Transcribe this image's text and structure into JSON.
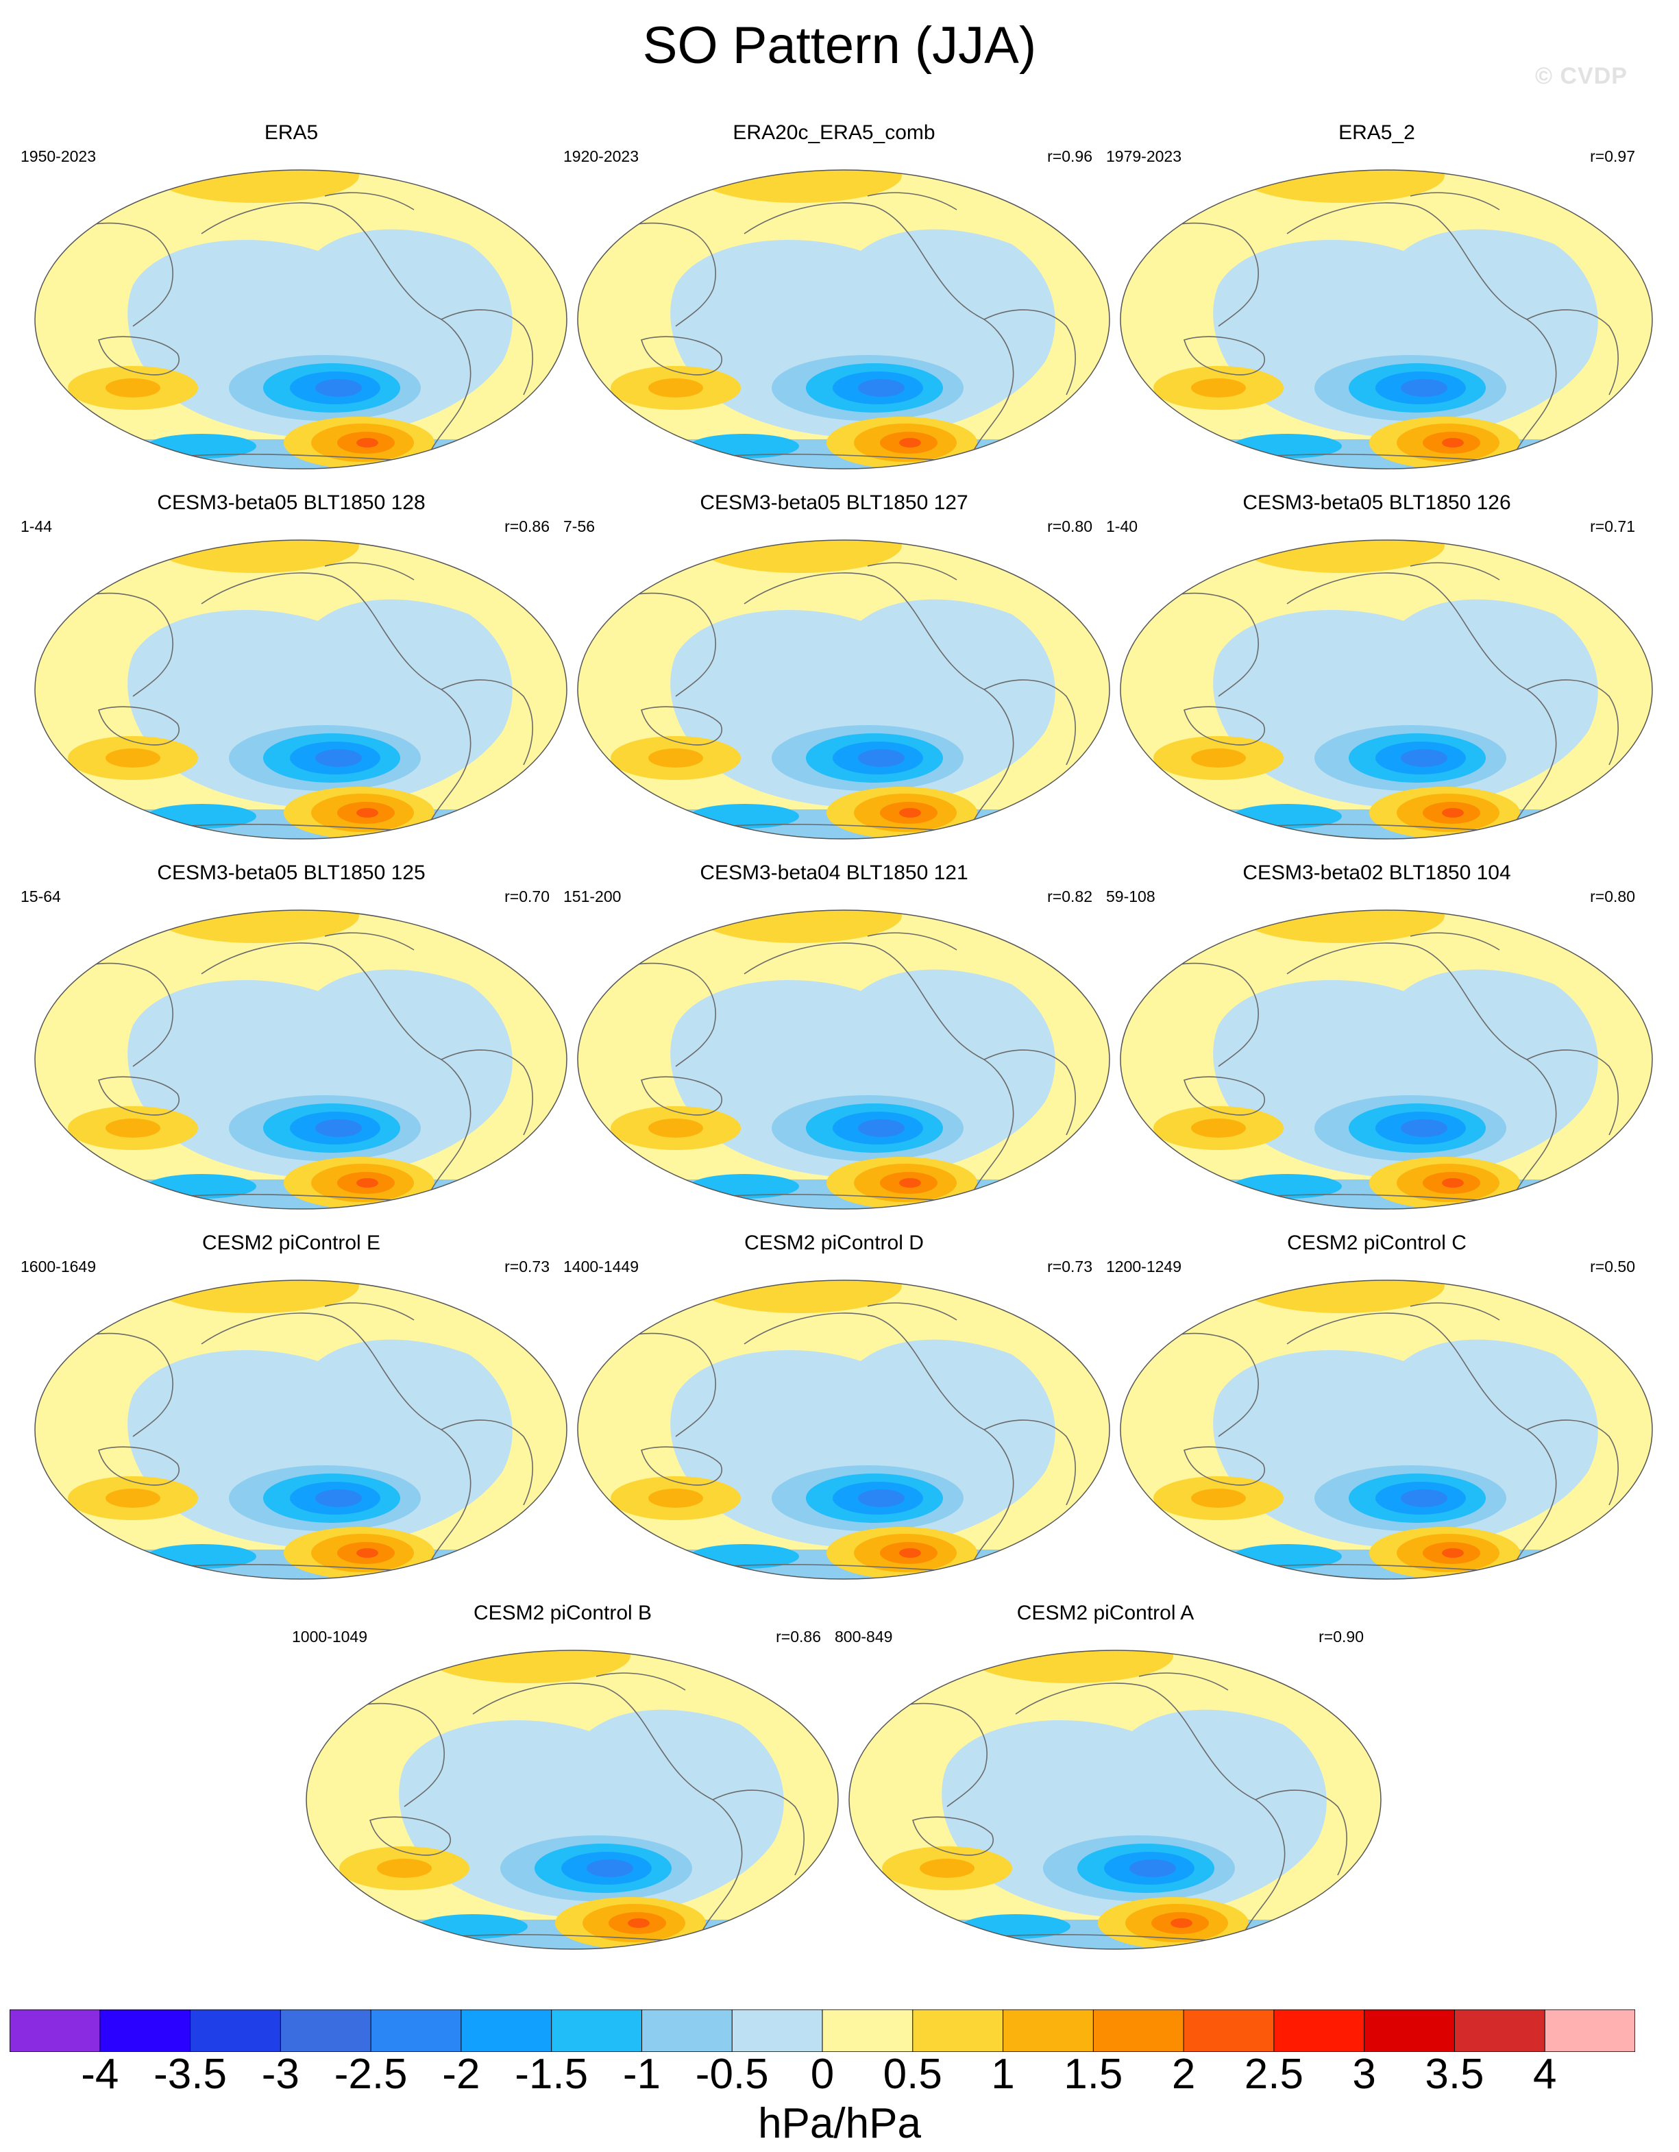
{
  "title": "SO Pattern (JJA)",
  "watermark": "© CVDP",
  "panels": [
    {
      "title": "ERA5",
      "period": "1950-2023",
      "r": ""
    },
    {
      "title": "ERA20c_ERA5_comb",
      "period": "1920-2023",
      "r": "r=0.96"
    },
    {
      "title": "ERA5_2",
      "period": "1979-2023",
      "r": "r=0.97"
    },
    {
      "title": "CESM3-beta05 BLT1850 128",
      "period": "1-44",
      "r": "r=0.86"
    },
    {
      "title": "CESM3-beta05 BLT1850 127",
      "period": "7-56",
      "r": "r=0.80"
    },
    {
      "title": "CESM3-beta05 BLT1850 126",
      "period": "1-40",
      "r": "r=0.71"
    },
    {
      "title": "CESM3-beta05 BLT1850 125",
      "period": "15-64",
      "r": "r=0.70"
    },
    {
      "title": "CESM3-beta04 BLT1850 121",
      "period": "151-200",
      "r": "r=0.82"
    },
    {
      "title": "CESM3-beta02 BLT1850 104",
      "period": "59-108",
      "r": "r=0.80"
    },
    {
      "title": "CESM2 piControl E",
      "period": "1600-1649",
      "r": "r=0.73"
    },
    {
      "title": "CESM2 piControl D",
      "period": "1400-1449",
      "r": "r=0.73"
    },
    {
      "title": "CESM2 piControl C",
      "period": "1200-1249",
      "r": "r=0.50"
    },
    {
      "title": "CESM2 piControl B",
      "period": "1000-1049",
      "r": "r=0.86"
    },
    {
      "title": "CESM2 piControl A",
      "period": "800-849",
      "r": "r=0.90"
    }
  ],
  "colorbar": {
    "units": "hPa/hPa",
    "ticks": [
      "-4",
      "-3.5",
      "-3",
      "-2.5",
      "-2",
      "-1.5",
      "-1",
      "-0.5",
      "0",
      "0.5",
      "1",
      "1.5",
      "2",
      "2.5",
      "3",
      "3.5",
      "4"
    ],
    "colors": [
      "#8a2be2",
      "#2a00ff",
      "#1f3fe8",
      "#3a6ee0",
      "#2a86f5",
      "#12a0ff",
      "#20bdf8",
      "#8ccdf0",
      "#bee0f3",
      "#fff6a0",
      "#fcd634",
      "#fcb20c",
      "#fc8c00",
      "#fc5a0a",
      "#ff1a00",
      "#dc0000",
      "#d42a2a",
      "#ffb0b0"
    ]
  }
}
